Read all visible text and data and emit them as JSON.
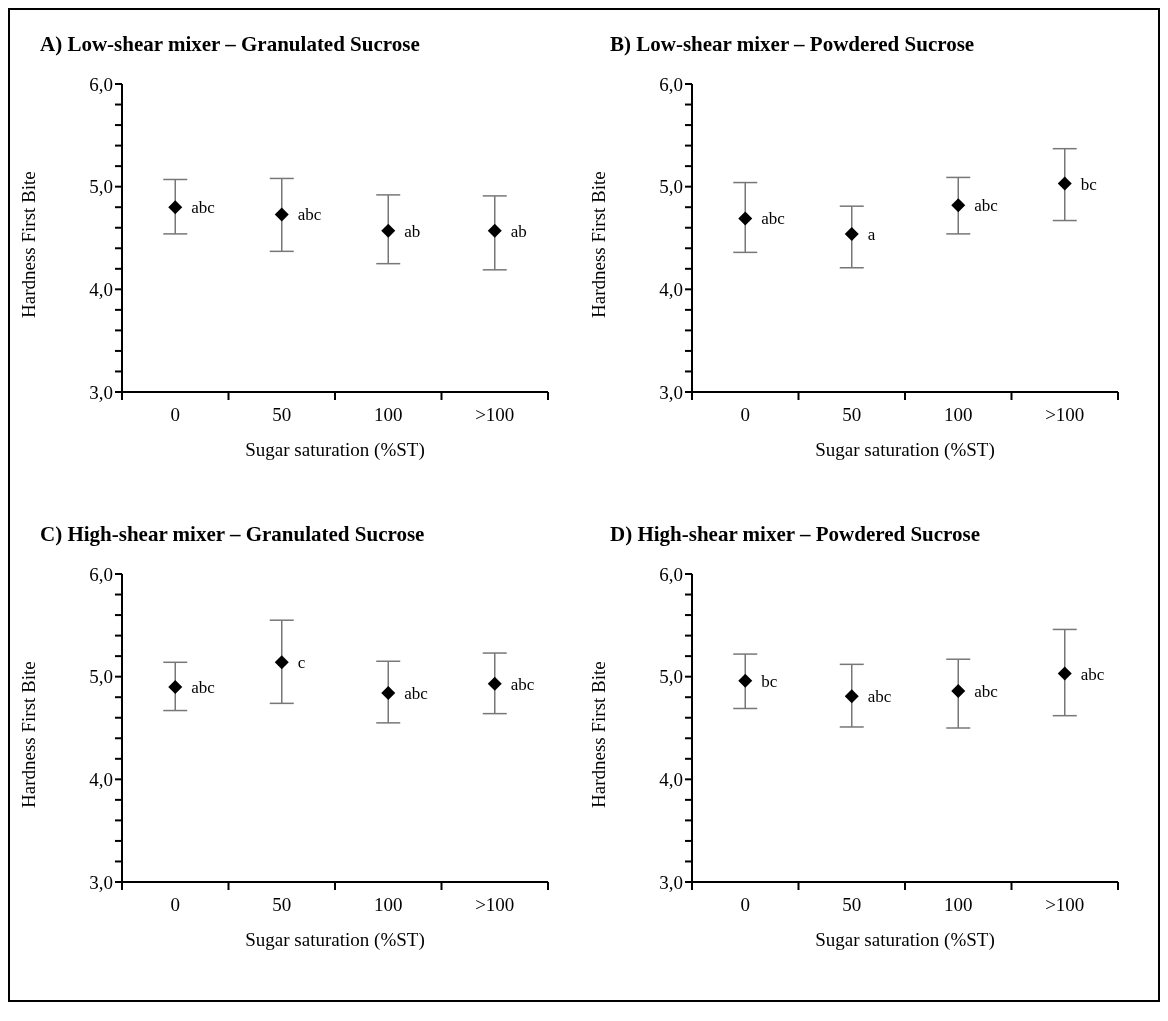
{
  "chart_data": [
    {
      "type": "scatter",
      "title": "A) Low-shear mixer – Granulated Sucrose",
      "xlabel": "Sugar saturation (%ST)",
      "ylabel": "Hardness First Bite",
      "categories": [
        "0",
        "50",
        "100",
        ">100"
      ],
      "values": [
        4.8,
        4.73,
        4.57,
        4.57
      ],
      "errors": [
        [
          4.54,
          5.07
        ],
        [
          4.37,
          5.08
        ],
        [
          4.25,
          4.92
        ],
        [
          4.19,
          4.91
        ]
      ],
      "color": "#000000",
      "marker": "diamond",
      "ylim": [
        3,
        6
      ],
      "yticks": [
        {
          "value": 3,
          "label": "3,0"
        },
        {
          "value": 3.2,
          "label": null
        },
        {
          "value": 3.4,
          "label": null
        },
        {
          "value": 3.6,
          "label": null
        },
        {
          "value": 3.8,
          "label": null
        },
        {
          "value": 4,
          "label": "4,0"
        },
        {
          "value": 4.2,
          "label": null
        },
        {
          "value": 4.4,
          "label": null
        },
        {
          "value": 4.6,
          "label": null
        },
        {
          "value": 4.8,
          "label": null
        },
        {
          "value": 5,
          "label": "5,0"
        },
        {
          "value": 5.2,
          "label": null
        },
        {
          "value": 5.4,
          "label": null
        },
        {
          "value": 5.6,
          "label": null
        },
        {
          "value": 5.8,
          "label": null
        },
        {
          "value": 6,
          "label": "6,0"
        }
      ],
      "annotations": [
        {
          "text": "abc",
          "x": "0",
          "y": 4.8
        },
        {
          "text": "abc",
          "x": "50",
          "y": 4.73
        },
        {
          "text": "ab",
          "x": "100",
          "y": 4.57
        },
        {
          "text": "ab",
          "x": ">100",
          "y": 4.57
        }
      ]
    },
    {
      "type": "scatter",
      "title": "B) Low-shear mixer – Powdered Sucrose",
      "xlabel": "Sugar saturation (%ST)",
      "ylabel": "Hardness First Bite",
      "categories": [
        "0",
        "50",
        "100",
        ">100"
      ],
      "values": [
        4.69,
        4.54,
        4.82,
        5.03
      ],
      "errors": [
        [
          4.36,
          5.04
        ],
        [
          4.21,
          4.81
        ],
        [
          4.54,
          5.09
        ],
        [
          4.67,
          5.37
        ]
      ],
      "color": "#000000",
      "marker": "diamond",
      "ylim": [
        3,
        6
      ],
      "yticks": [
        {
          "value": 3,
          "label": "3,0"
        },
        {
          "value": 3.2,
          "label": null
        },
        {
          "value": 3.4,
          "label": null
        },
        {
          "value": 3.6,
          "label": null
        },
        {
          "value": 3.8,
          "label": null
        },
        {
          "value": 4,
          "label": "4,0"
        },
        {
          "value": 4.2,
          "label": null
        },
        {
          "value": 4.4,
          "label": null
        },
        {
          "value": 4.6,
          "label": null
        },
        {
          "value": 4.8,
          "label": null
        },
        {
          "value": 5,
          "label": "5,0"
        },
        {
          "value": 5.2,
          "label": null
        },
        {
          "value": 5.4,
          "label": null
        },
        {
          "value": 5.6,
          "label": null
        },
        {
          "value": 5.8,
          "label": null
        },
        {
          "value": 6,
          "label": "6,0"
        }
      ],
      "annotations": [
        {
          "text": "abc",
          "x": "0",
          "y": 4.69
        },
        {
          "text": "a",
          "x": "50",
          "y": 4.54
        },
        {
          "text": "abc",
          "x": "100",
          "y": 4.82
        },
        {
          "text": "bc",
          "x": ">100",
          "y": 5.03
        }
      ]
    },
    {
      "type": "scatter",
      "title": "C) High-shear mixer – Granulated Sucrose",
      "xlabel": "Sugar saturation (%ST)",
      "ylabel": "Hardness First Bite",
      "categories": [
        "0",
        "50",
        "100",
        ">100"
      ],
      "values": [
        4.9,
        5.14,
        4.84,
        4.93
      ],
      "errors": [
        [
          4.67,
          5.14
        ],
        [
          4.74,
          5.55
        ],
        [
          4.55,
          5.15
        ],
        [
          4.64,
          5.23
        ]
      ],
      "color": "#000000",
      "marker": "diamond",
      "ylim": [
        3,
        6
      ],
      "yticks": [
        {
          "value": 3,
          "label": "3,0"
        },
        {
          "value": 3.2,
          "label": null
        },
        {
          "value": 3.4,
          "label": null
        },
        {
          "value": 3.6,
          "label": null
        },
        {
          "value": 3.8,
          "label": null
        },
        {
          "value": 4,
          "label": "4,0"
        },
        {
          "value": 4.2,
          "label": null
        },
        {
          "value": 4.4,
          "label": null
        },
        {
          "value": 4.6,
          "label": null
        },
        {
          "value": 4.8,
          "label": null
        },
        {
          "value": 5,
          "label": "5,0"
        },
        {
          "value": 5.2,
          "label": null
        },
        {
          "value": 5.4,
          "label": null
        },
        {
          "value": 5.6,
          "label": null
        },
        {
          "value": 5.8,
          "label": null
        },
        {
          "value": 6,
          "label": "6,0"
        }
      ],
      "annotations": [
        {
          "text": "abc",
          "x": "0",
          "y": 4.9
        },
        {
          "text": "c",
          "x": "50",
          "y": 5.14
        },
        {
          "text": "abc",
          "x": "100",
          "y": 4.84
        },
        {
          "text": "abc",
          "x": ">100",
          "y": 4.93
        }
      ]
    },
    {
      "type": "scatter",
      "title": "D) High-shear mixer – Powdered Sucrose",
      "xlabel": "Sugar saturation (%ST)",
      "ylabel": "Hardness First Bite",
      "categories": [
        "0",
        "50",
        "100",
        ">100"
      ],
      "values": [
        4.96,
        4.81,
        4.86,
        5.03
      ],
      "errors": [
        [
          4.69,
          5.22
        ],
        [
          4.51,
          5.12
        ],
        [
          4.5,
          5.17
        ],
        [
          4.62,
          5.46
        ]
      ],
      "color": "#000000",
      "marker": "diamond",
      "ylim": [
        3,
        6
      ],
      "yticks": [
        {
          "value": 3,
          "label": "3,0"
        },
        {
          "value": 3.2,
          "label": null
        },
        {
          "value": 3.4,
          "label": null
        },
        {
          "value": 3.6,
          "label": null
        },
        {
          "value": 3.8,
          "label": null
        },
        {
          "value": 4,
          "label": "4,0"
        },
        {
          "value": 4.2,
          "label": null
        },
        {
          "value": 4.4,
          "label": null
        },
        {
          "value": 4.6,
          "label": null
        },
        {
          "value": 4.8,
          "label": null
        },
        {
          "value": 5,
          "label": "5,0"
        },
        {
          "value": 5.2,
          "label": null
        },
        {
          "value": 5.4,
          "label": null
        },
        {
          "value": 5.6,
          "label": null
        },
        {
          "value": 5.8,
          "label": null
        },
        {
          "value": 6,
          "label": "6,0"
        }
      ],
      "annotations": [
        {
          "text": "bc",
          "x": "0",
          "y": 4.96
        },
        {
          "text": "abc",
          "x": "50",
          "y": 4.81
        },
        {
          "text": "abc",
          "x": "100",
          "y": 4.86
        },
        {
          "text": "abc",
          "x": ">100",
          "y": 5.03
        }
      ]
    }
  ]
}
